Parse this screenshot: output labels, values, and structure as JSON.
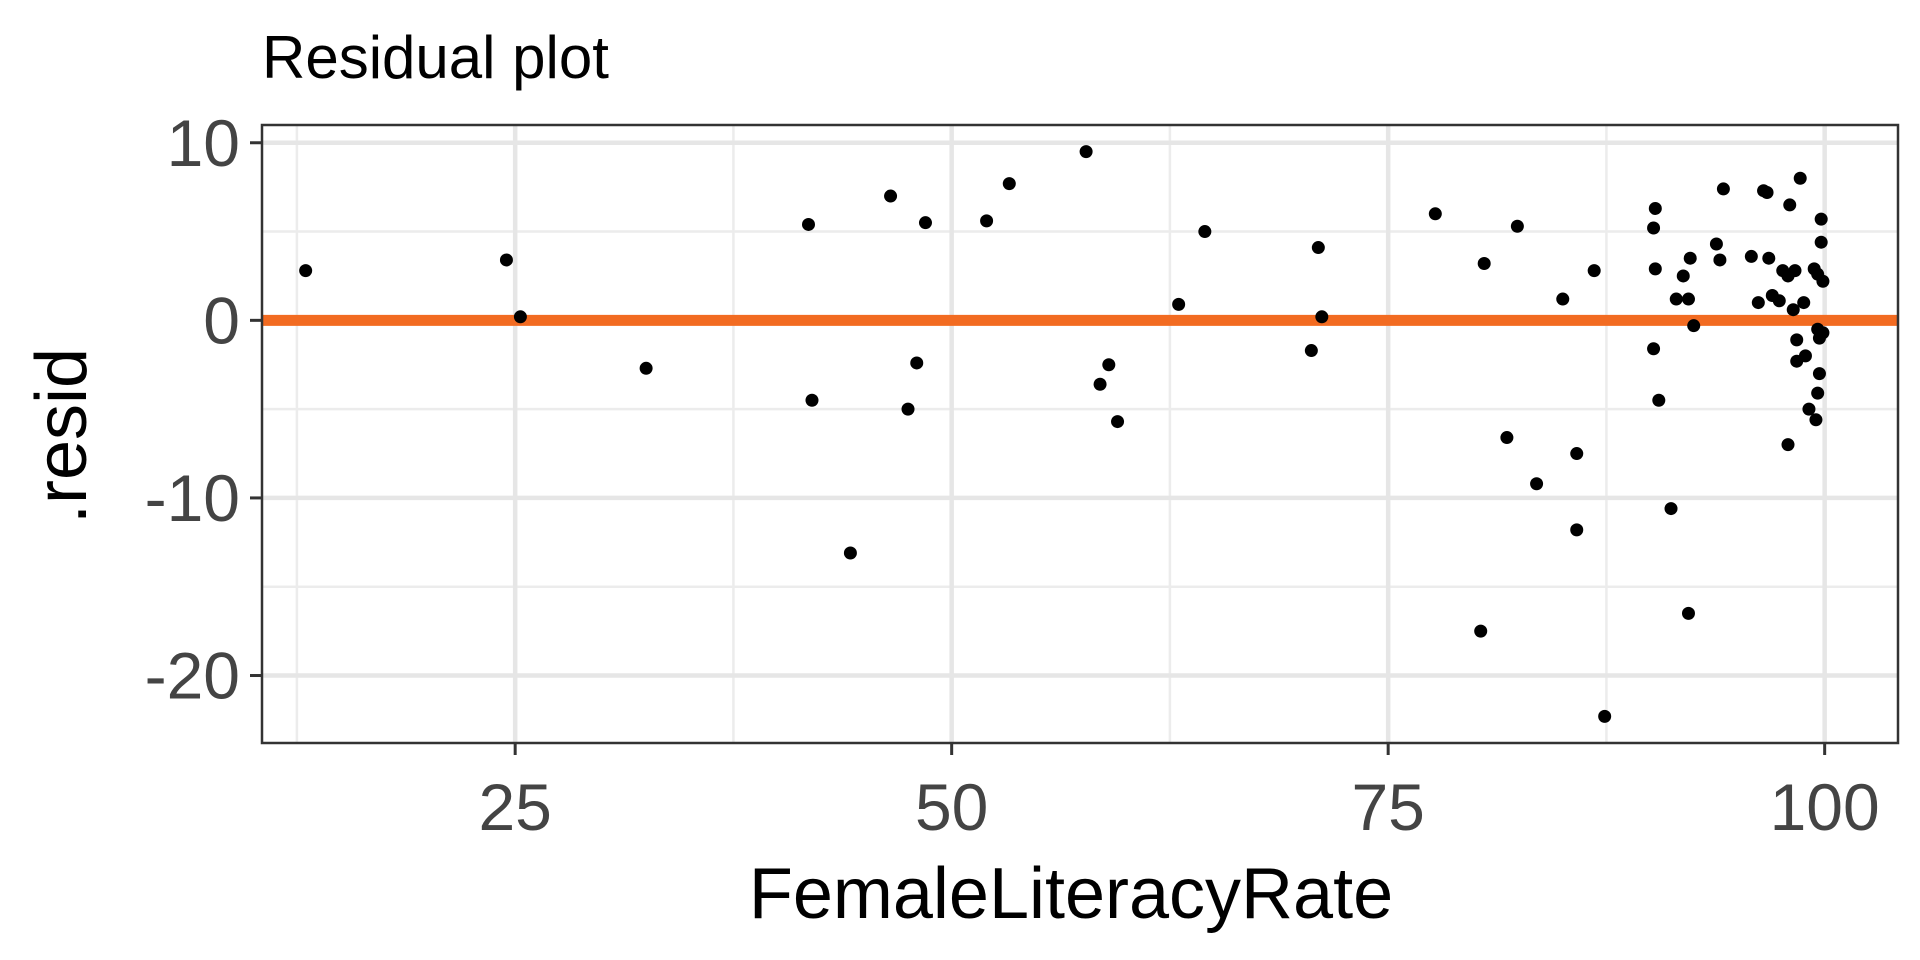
{
  "chart_data": {
    "type": "scatter",
    "title": "Residual plot",
    "xlabel": "FemaleLiteracyRate",
    "ylabel": ".resid",
    "xlim": [
      10.5,
      104.2
    ],
    "ylim": [
      -23.8,
      11.0
    ],
    "x_ticks": [
      25,
      50,
      75,
      100
    ],
    "x_tick_labels": [
      "25",
      "50",
      "75",
      "100"
    ],
    "x_minor_ticks": [
      12.5,
      37.5,
      62.5,
      87.5
    ],
    "y_ticks": [
      10,
      0,
      -10,
      -20
    ],
    "y_tick_labels": [
      "10",
      "0",
      "-10",
      "-20"
    ],
    "y_minor_ticks": [
      5,
      -5,
      -15
    ],
    "grid": true,
    "reference_line": {
      "y": 0,
      "color": "#f26b21"
    },
    "point_color": "#000000",
    "points": [
      [
        13.0,
        2.8
      ],
      [
        24.5,
        3.4
      ],
      [
        25.3,
        0.2
      ],
      [
        32.5,
        -2.7
      ],
      [
        41.8,
        5.4
      ],
      [
        42.0,
        -4.5
      ],
      [
        44.2,
        -13.1
      ],
      [
        46.5,
        7.0
      ],
      [
        47.5,
        -5.0
      ],
      [
        48.0,
        -2.4
      ],
      [
        48.5,
        5.5
      ],
      [
        52.0,
        5.6
      ],
      [
        53.3,
        7.7
      ],
      [
        57.7,
        9.5
      ],
      [
        58.5,
        -3.6
      ],
      [
        59.0,
        -2.5
      ],
      [
        59.5,
        -5.7
      ],
      [
        63.0,
        0.9
      ],
      [
        64.5,
        5.0
      ],
      [
        70.6,
        -1.7
      ],
      [
        71.0,
        4.1
      ],
      [
        71.2,
        0.2
      ],
      [
        77.7,
        6.0
      ],
      [
        80.3,
        -17.5
      ],
      [
        80.5,
        3.2
      ],
      [
        81.8,
        -6.6
      ],
      [
        82.4,
        5.3
      ],
      [
        83.5,
        -9.2
      ],
      [
        85.0,
        1.2
      ],
      [
        85.8,
        -7.5
      ],
      [
        85.8,
        -11.8
      ],
      [
        86.8,
        2.8
      ],
      [
        87.4,
        -22.3
      ],
      [
        90.2,
        5.2
      ],
      [
        90.3,
        6.3
      ],
      [
        90.3,
        2.9
      ],
      [
        90.2,
        -1.6
      ],
      [
        90.5,
        -4.5
      ],
      [
        91.2,
        -10.6
      ],
      [
        91.5,
        1.2
      ],
      [
        91.9,
        2.5
      ],
      [
        92.2,
        1.2
      ],
      [
        92.3,
        3.5
      ],
      [
        92.2,
        -16.5
      ],
      [
        92.5,
        -0.3
      ],
      [
        93.8,
        4.3
      ],
      [
        94.0,
        3.4
      ],
      [
        94.2,
        7.4
      ],
      [
        95.8,
        3.6
      ],
      [
        96.2,
        1.0
      ],
      [
        96.5,
        7.3
      ],
      [
        96.7,
        7.2
      ],
      [
        96.8,
        3.5
      ],
      [
        97.0,
        1.4
      ],
      [
        97.4,
        1.1
      ],
      [
        97.6,
        2.8
      ],
      [
        97.9,
        2.5
      ],
      [
        97.9,
        -7.0
      ],
      [
        98.0,
        6.5
      ],
      [
        98.2,
        0.6
      ],
      [
        98.3,
        2.8
      ],
      [
        98.4,
        -1.1
      ],
      [
        98.4,
        -2.3
      ],
      [
        98.6,
        8.0
      ],
      [
        98.8,
        1.0
      ],
      [
        98.9,
        -2.0
      ],
      [
        99.1,
        -5.0
      ],
      [
        99.4,
        2.9
      ],
      [
        99.5,
        -5.6
      ],
      [
        99.6,
        2.6
      ],
      [
        99.6,
        -0.5
      ],
      [
        99.6,
        -4.1
      ],
      [
        99.7,
        -1.0
      ],
      [
        99.7,
        -3.0
      ],
      [
        99.8,
        5.7
      ],
      [
        99.8,
        4.4
      ],
      [
        99.9,
        2.2
      ],
      [
        99.9,
        -0.7
      ]
    ]
  }
}
